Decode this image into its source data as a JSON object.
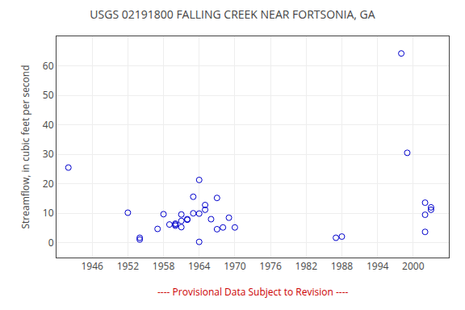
{
  "chart_data": {
    "type": "scatter",
    "title": "USGS 02191800 FALLING CREEK NEAR FORTSONIA, GA",
    "ylabel": "Streamflow, in cubic feet per second",
    "annotations": [
      {
        "text": "---- Provisional Data Subject to Revision ----",
        "color": "#cc0000"
      }
    ],
    "x": [
      1942,
      1952,
      1954,
      1954,
      1957,
      1958,
      1959,
      1960,
      1960,
      1960,
      1961,
      1961,
      1961,
      1962,
      1962,
      1963,
      1963,
      1964,
      1964,
      1964,
      1965,
      1965,
      1966,
      1967,
      1967,
      1968,
      1969,
      1970,
      1987,
      1988,
      1998,
      1999,
      2002,
      2002,
      2002,
      2003,
      2003
    ],
    "values": [
      25.5,
      10.2,
      1.1,
      1.7,
      4.7,
      9.7,
      6.2,
      5.8,
      6.5,
      6.2,
      5.3,
      7.4,
      9.6,
      7.8,
      8.0,
      10.0,
      15.6,
      21.3,
      0.3,
      9.9,
      11.2,
      12.8,
      8.0,
      4.6,
      15.2,
      5.2,
      8.5,
      5.2,
      1.7,
      2.1,
      64.2,
      30.5,
      13.6,
      9.5,
      3.7,
      12.0,
      11.2
    ],
    "color": "#0000cc",
    "marker": "circle-open",
    "xlim": [
      1940,
      2006
    ],
    "ylim": [
      -5,
      70
    ],
    "xticks": [
      1946,
      1952,
      1958,
      1964,
      1970,
      1976,
      1982,
      1988,
      1994,
      2000
    ],
    "yticks": [
      0,
      10,
      20,
      30,
      40,
      50,
      60
    ],
    "grid": true
  }
}
